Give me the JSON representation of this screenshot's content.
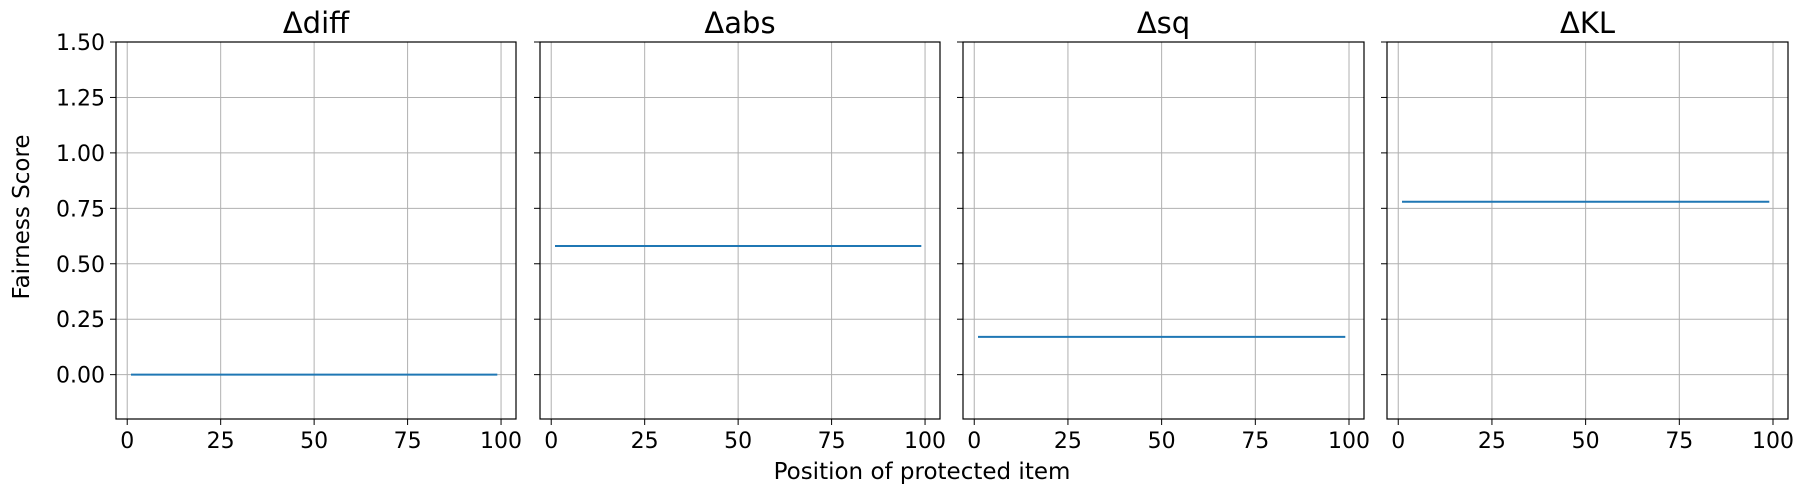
{
  "figure": {
    "ylabel": "Fairness Score",
    "xlabel": "Position of protected item"
  },
  "chart_data": [
    {
      "type": "line",
      "title": "Δdiff",
      "xlabel": "",
      "ylabel": "Fairness Score",
      "xlim": [
        -3,
        104
      ],
      "ylim": [
        -0.2,
        1.5
      ],
      "xticks": [
        "0",
        "25",
        "50",
        "75",
        "100"
      ],
      "yticks": [
        "0.00",
        "0.25",
        "0.50",
        "0.75",
        "1.00",
        "1.25",
        "1.50"
      ],
      "grid": true,
      "series": [
        {
          "x": [
            1,
            99
          ],
          "y": [
            0.0,
            0.0
          ],
          "color": "#1f77b4"
        }
      ]
    },
    {
      "type": "line",
      "title": "Δabs",
      "xlabel": "",
      "ylabel": "",
      "xlim": [
        -3,
        104
      ],
      "ylim": [
        -0.2,
        1.5
      ],
      "xticks": [
        "0",
        "25",
        "50",
        "75",
        "100"
      ],
      "yticks": [],
      "grid": true,
      "series": [
        {
          "x": [
            1,
            99
          ],
          "y": [
            0.58,
            0.58
          ],
          "color": "#1f77b4"
        }
      ]
    },
    {
      "type": "line",
      "title": "Δsq",
      "xlabel": "",
      "ylabel": "",
      "xlim": [
        -3,
        104
      ],
      "ylim": [
        -0.2,
        1.5
      ],
      "xticks": [
        "0",
        "25",
        "50",
        "75",
        "100"
      ],
      "yticks": [],
      "grid": true,
      "series": [
        {
          "x": [
            1,
            99
          ],
          "y": [
            0.17,
            0.17
          ],
          "color": "#1f77b4"
        }
      ]
    },
    {
      "type": "line",
      "title": "ΔKL",
      "xlabel": "",
      "ylabel": "",
      "xlim": [
        -3,
        104
      ],
      "ylim": [
        -0.2,
        1.5
      ],
      "xticks": [
        "0",
        "25",
        "50",
        "75",
        "100"
      ],
      "yticks": [],
      "grid": true,
      "series": [
        {
          "x": [
            1,
            99
          ],
          "y": [
            0.78,
            0.78
          ],
          "color": "#1f77b4"
        }
      ]
    }
  ]
}
